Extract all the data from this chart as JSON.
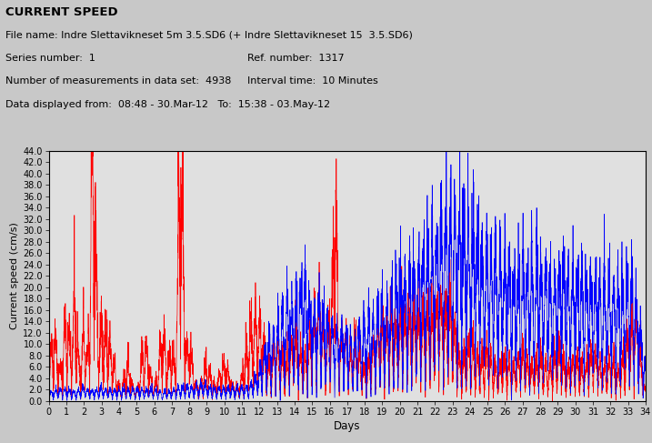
{
  "title": "CURRENT SPEED",
  "line1": "File name: Indre Slettavikneset 5m 3.5.SD6 (+ Indre Slettavikneset 15  3.5.SD6)",
  "line2_left": "Series number:  1",
  "line2_right": "Ref. number:  1317",
  "line3_left": "Number of measurements in data set:  4938",
  "line3_right": "Interval time:  10 Minutes",
  "line4": "Data displayed from:  08:48 - 30.Mar-12   To:  15:38 - 03.May-12",
  "ylabel": "Current speed (cm/s)",
  "xlabel": "Days",
  "ylim": [
    0,
    44
  ],
  "xlim": [
    0,
    34
  ],
  "ytick_vals": [
    0.0,
    2.0,
    4.0,
    6.0,
    8.0,
    10.0,
    12.0,
    14.0,
    16.0,
    18.0,
    20.0,
    22.0,
    24.0,
    26.0,
    28.0,
    30.0,
    32.0,
    34.0,
    36.0,
    38.0,
    40.0,
    42.0,
    44.0
  ],
  "xticks": [
    0,
    1,
    2,
    3,
    4,
    5,
    6,
    7,
    8,
    9,
    10,
    11,
    12,
    13,
    14,
    15,
    16,
    17,
    18,
    19,
    20,
    21,
    22,
    23,
    24,
    25,
    26,
    27,
    28,
    29,
    30,
    31,
    32,
    33,
    34
  ],
  "color_red": "#FF0000",
  "color_blue": "#0000FF",
  "bg_color": "#C8C8C8",
  "plot_bg": "#E0E0E0",
  "n_points": 4896,
  "total_days": 34,
  "seed": 42
}
